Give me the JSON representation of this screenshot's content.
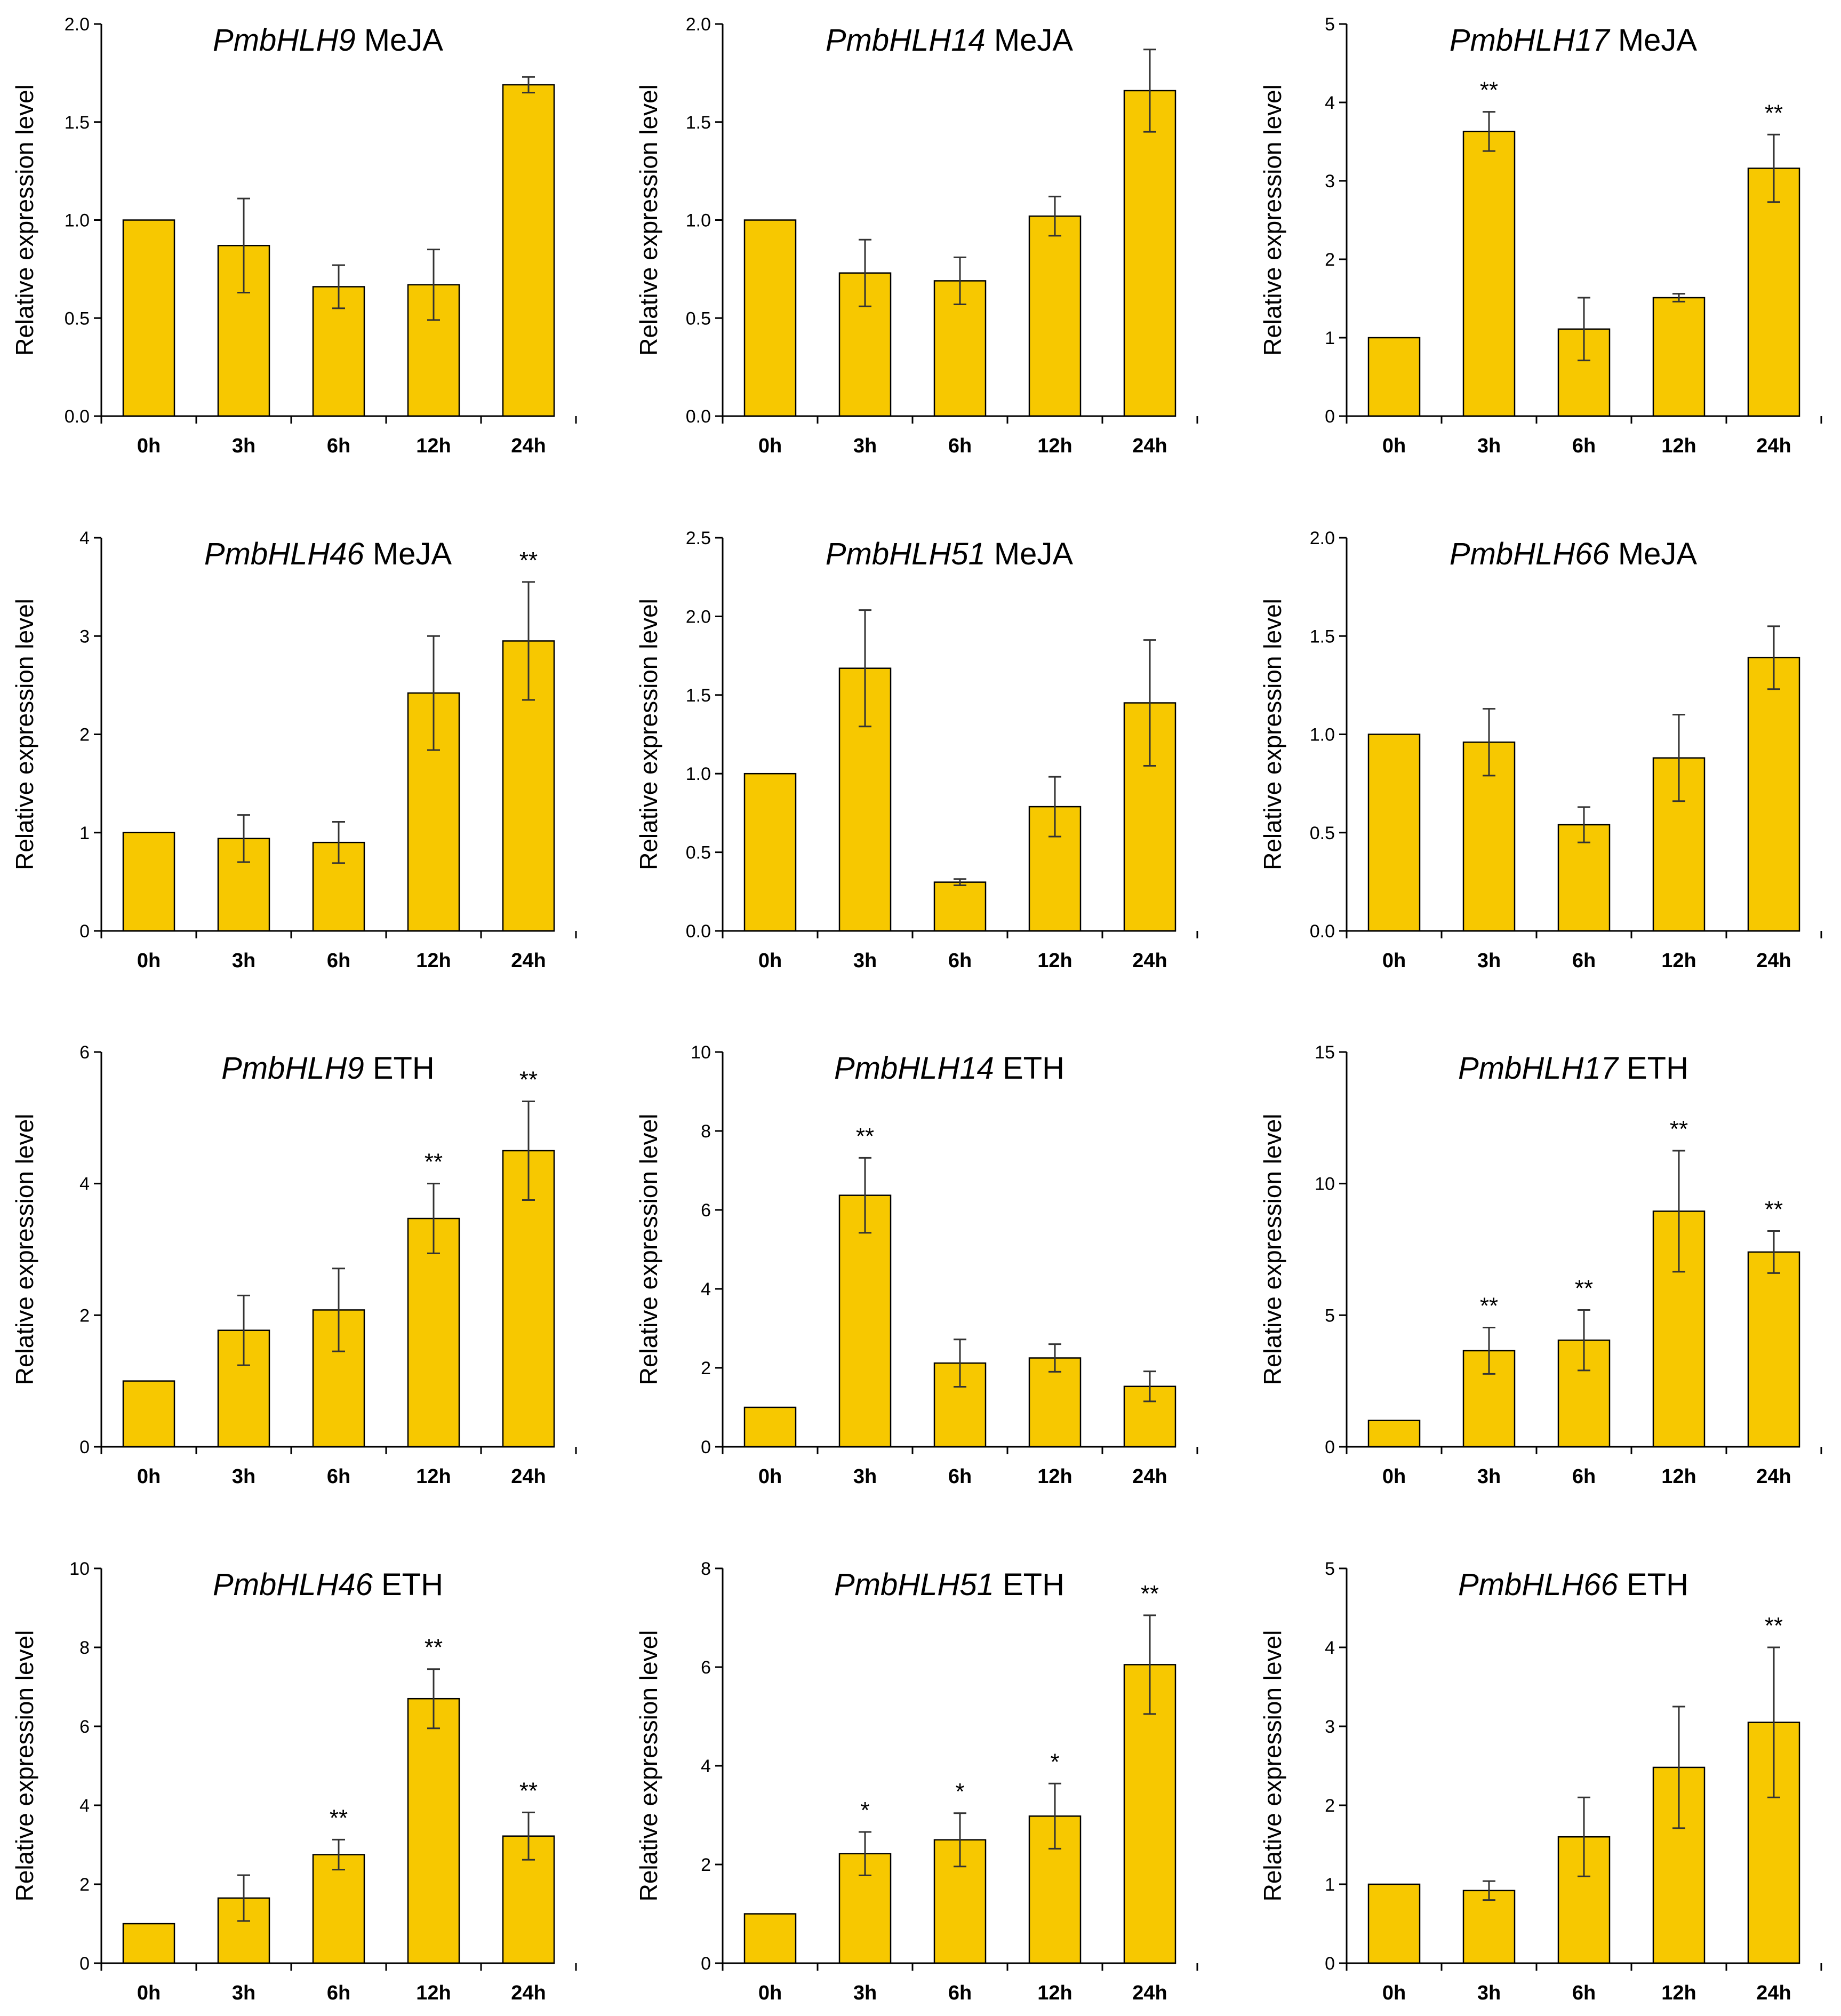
{
  "colors": {
    "bar": "#F7C800",
    "bar_edge": "#000000",
    "axis": "#000000",
    "error": "#333333"
  },
  "chart_data": [
    {
      "type": "bar",
      "gene": "PmbHLH9",
      "treatment": "MeJA",
      "ylabel": "Relative expression level",
      "categories": [
        "0h",
        "3h",
        "6h",
        "12h",
        "24h"
      ],
      "ylim": [
        0,
        2.0
      ],
      "yticks": [
        "0.0",
        "0.5",
        "1.0",
        "1.5",
        "2.0"
      ],
      "ytick_values": [
        0,
        0.5,
        1.0,
        1.5,
        2.0
      ],
      "values": [
        1.0,
        0.87,
        0.66,
        0.67,
        1.69
      ],
      "errors": [
        0,
        0.24,
        0.11,
        0.18,
        0.04
      ],
      "significance": [
        "",
        "",
        "",
        "",
        ""
      ]
    },
    {
      "type": "bar",
      "gene": "PmbHLH14",
      "treatment": "MeJA",
      "ylabel": "Relative expression level",
      "categories": [
        "0h",
        "3h",
        "6h",
        "12h",
        "24h"
      ],
      "ylim": [
        0,
        2.0
      ],
      "yticks": [
        "0.0",
        "0.5",
        "1.0",
        "1.5",
        "2.0"
      ],
      "ytick_values": [
        0,
        0.5,
        1.0,
        1.5,
        2.0
      ],
      "values": [
        1.0,
        0.73,
        0.69,
        1.02,
        1.66
      ],
      "errors": [
        0,
        0.17,
        0.12,
        0.1,
        0.21
      ],
      "significance": [
        "",
        "",
        "",
        "",
        ""
      ]
    },
    {
      "type": "bar",
      "gene": "PmbHLH17",
      "treatment": "MeJA",
      "ylabel": "Relative expression level",
      "categories": [
        "0h",
        "3h",
        "6h",
        "12h",
        "24h"
      ],
      "ylim": [
        0,
        5
      ],
      "yticks": [
        "0",
        "1",
        "2",
        "3",
        "4",
        "5"
      ],
      "ytick_values": [
        0,
        1,
        2,
        3,
        4,
        5
      ],
      "values": [
        1.0,
        3.63,
        1.11,
        1.51,
        3.16
      ],
      "errors": [
        0,
        0.25,
        0.4,
        0.05,
        0.43
      ],
      "significance": [
        "",
        "**",
        "",
        "",
        "**"
      ]
    },
    {
      "type": "bar",
      "gene": "PmbHLH46",
      "treatment": "MeJA",
      "ylabel": "Relative expression level",
      "categories": [
        "0h",
        "3h",
        "6h",
        "12h",
        "24h"
      ],
      "ylim": [
        0,
        4
      ],
      "yticks": [
        "0",
        "1",
        "2",
        "3",
        "4"
      ],
      "ytick_values": [
        0,
        1,
        2,
        3,
        4
      ],
      "values": [
        1.0,
        0.94,
        0.9,
        2.42,
        2.95
      ],
      "errors": [
        0,
        0.24,
        0.21,
        0.58,
        0.6
      ],
      "significance": [
        "",
        "",
        "",
        "",
        "**"
      ]
    },
    {
      "type": "bar",
      "gene": "PmbHLH51",
      "treatment": "MeJA",
      "ylabel": "Relative expression level",
      "categories": [
        "0h",
        "3h",
        "6h",
        "12h",
        "24h"
      ],
      "ylim": [
        0,
        2.5
      ],
      "yticks": [
        "0.0",
        "0.5",
        "1.0",
        "1.5",
        "2.0",
        "2.5"
      ],
      "ytick_values": [
        0,
        0.5,
        1.0,
        1.5,
        2.0,
        2.5
      ],
      "values": [
        1.0,
        1.67,
        0.31,
        0.79,
        1.45
      ],
      "errors": [
        0,
        0.37,
        0.02,
        0.19,
        0.4
      ],
      "significance": [
        "",
        "",
        "",
        "",
        ""
      ]
    },
    {
      "type": "bar",
      "gene": "PmbHLH66",
      "treatment": "MeJA",
      "ylabel": "Relative expression level",
      "categories": [
        "0h",
        "3h",
        "6h",
        "12h",
        "24h"
      ],
      "ylim": [
        0,
        2.0
      ],
      "yticks": [
        "0.0",
        "0.5",
        "1.0",
        "1.5",
        "2.0"
      ],
      "ytick_values": [
        0,
        0.5,
        1.0,
        1.5,
        2.0
      ],
      "values": [
        1.0,
        0.96,
        0.54,
        0.88,
        1.39
      ],
      "errors": [
        0,
        0.17,
        0.09,
        0.22,
        0.16
      ],
      "significance": [
        "",
        "",
        "",
        "",
        ""
      ]
    },
    {
      "type": "bar",
      "gene": "PmbHLH9",
      "treatment": "ETH",
      "ylabel": "Relative expression level",
      "categories": [
        "0h",
        "3h",
        "6h",
        "12h",
        "24h"
      ],
      "ylim": [
        0,
        6
      ],
      "yticks": [
        "0",
        "2",
        "4",
        "6"
      ],
      "ytick_values": [
        0,
        2,
        4,
        6
      ],
      "values": [
        1.0,
        1.77,
        2.08,
        3.47,
        4.5
      ],
      "errors": [
        0,
        0.53,
        0.63,
        0.53,
        0.75
      ],
      "significance": [
        "",
        "",
        "",
        "**",
        "**"
      ]
    },
    {
      "type": "bar",
      "gene": "PmbHLH14",
      "treatment": "ETH",
      "ylabel": "Relative expression level",
      "categories": [
        "0h",
        "3h",
        "6h",
        "12h",
        "24h"
      ],
      "ylim": [
        0,
        10
      ],
      "yticks": [
        "0",
        "2",
        "4",
        "6",
        "8",
        "10"
      ],
      "ytick_values": [
        0,
        2,
        4,
        6,
        8,
        10
      ],
      "values": [
        1.0,
        6.37,
        2.12,
        2.25,
        1.53
      ],
      "errors": [
        0,
        0.95,
        0.6,
        0.35,
        0.38
      ],
      "significance": [
        "",
        "**",
        "",
        "",
        ""
      ]
    },
    {
      "type": "bar",
      "gene": "PmbHLH17",
      "treatment": "ETH",
      "ylabel": "Relative expression level",
      "categories": [
        "0h",
        "3h",
        "6h",
        "12h",
        "24h"
      ],
      "ylim": [
        0,
        15
      ],
      "yticks": [
        "0",
        "5",
        "10",
        "15"
      ],
      "ytick_values": [
        0,
        5,
        10,
        15
      ],
      "values": [
        1.0,
        3.65,
        4.05,
        8.95,
        7.4
      ],
      "errors": [
        0,
        0.88,
        1.15,
        2.3,
        0.8
      ],
      "significance": [
        "",
        "**",
        "**",
        "**",
        "**"
      ]
    },
    {
      "type": "bar",
      "gene": "PmbHLH46",
      "treatment": "ETH",
      "ylabel": "Relative expression level",
      "categories": [
        "0h",
        "3h",
        "6h",
        "12h",
        "24h"
      ],
      "ylim": [
        0,
        10
      ],
      "yticks": [
        "0",
        "2",
        "4",
        "6",
        "8",
        "10"
      ],
      "ytick_values": [
        0,
        2,
        4,
        6,
        8,
        10
      ],
      "values": [
        1.0,
        1.65,
        2.75,
        6.7,
        3.22
      ],
      "errors": [
        0,
        0.58,
        0.38,
        0.75,
        0.6
      ],
      "significance": [
        "",
        "",
        "**",
        "**",
        "**"
      ]
    },
    {
      "type": "bar",
      "gene": "PmbHLH51",
      "treatment": "ETH",
      "ylabel": "Relative expression level",
      "categories": [
        "0h",
        "3h",
        "6h",
        "12h",
        "24h"
      ],
      "ylim": [
        0,
        8
      ],
      "yticks": [
        "0",
        "2",
        "4",
        "6",
        "8"
      ],
      "ytick_values": [
        0,
        2,
        4,
        6,
        8
      ],
      "values": [
        1.0,
        2.22,
        2.5,
        2.98,
        6.05
      ],
      "errors": [
        0,
        0.44,
        0.54,
        0.66,
        1.0
      ],
      "significance": [
        "",
        "*",
        "*",
        "*",
        "**"
      ]
    },
    {
      "type": "bar",
      "gene": "PmbHLH66",
      "treatment": "ETH",
      "ylabel": "Relative expression level",
      "categories": [
        "0h",
        "3h",
        "6h",
        "12h",
        "24h"
      ],
      "ylim": [
        0,
        5
      ],
      "yticks": [
        "0",
        "1",
        "2",
        "3",
        "4",
        "5"
      ],
      "ytick_values": [
        0,
        1,
        2,
        3,
        4,
        5
      ],
      "values": [
        1.0,
        0.92,
        1.6,
        2.48,
        3.05
      ],
      "errors": [
        0,
        0.12,
        0.5,
        0.77,
        0.95
      ],
      "significance": [
        "",
        "",
        "",
        "",
        "**"
      ]
    }
  ]
}
